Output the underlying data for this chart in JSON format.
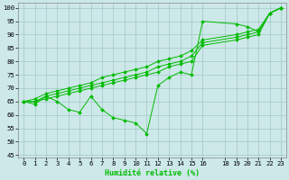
{
  "xlabel": "Humidité relative (%)",
  "background_color": "#cde8e8",
  "grid_color": "#a0c8c8",
  "line_color": "#00bb00",
  "xlim": [
    -0.5,
    23.5
  ],
  "ylim": [
    44,
    102
  ],
  "yticks": [
    45,
    50,
    55,
    60,
    65,
    70,
    75,
    80,
    85,
    90,
    95,
    100
  ],
  "xticks": [
    0,
    1,
    2,
    3,
    4,
    5,
    6,
    7,
    8,
    9,
    10,
    11,
    12,
    13,
    14,
    15,
    16,
    18,
    19,
    20,
    21,
    22,
    23
  ],
  "series": [
    {
      "x": [
        0,
        1,
        2,
        3,
        4,
        5,
        6,
        7,
        8,
        9,
        10,
        11,
        12,
        13,
        14,
        15,
        16,
        19,
        20,
        21,
        22,
        23
      ],
      "y": [
        65,
        64,
        67,
        65,
        62,
        61,
        67,
        62,
        59,
        58,
        57,
        53,
        71,
        74,
        76,
        75,
        95,
        94,
        93,
        91,
        98,
        100
      ]
    },
    {
      "x": [
        0,
        1,
        2,
        3,
        4,
        5,
        6,
        7,
        8,
        9,
        10,
        11,
        12,
        13,
        14,
        15,
        16,
        19,
        20,
        21,
        22,
        23
      ],
      "y": [
        65,
        65,
        66,
        67,
        68,
        69,
        70,
        71,
        72,
        73,
        74,
        75,
        76,
        78,
        79,
        80,
        86,
        88,
        89,
        90,
        98,
        100
      ]
    },
    {
      "x": [
        0,
        1,
        2,
        3,
        4,
        5,
        6,
        7,
        8,
        9,
        10,
        11,
        12,
        13,
        14,
        15,
        16,
        19,
        20,
        21,
        22,
        23
      ],
      "y": [
        65,
        65,
        67,
        68,
        69,
        70,
        71,
        72,
        73,
        74,
        75,
        76,
        78,
        79,
        80,
        82,
        87,
        89,
        90,
        91,
        98,
        100
      ]
    },
    {
      "x": [
        0,
        1,
        2,
        3,
        4,
        5,
        6,
        7,
        8,
        9,
        10,
        11,
        12,
        13,
        14,
        15,
        16,
        19,
        20,
        21,
        22,
        23
      ],
      "y": [
        65,
        66,
        68,
        69,
        70,
        71,
        72,
        74,
        75,
        76,
        77,
        78,
        80,
        81,
        82,
        84,
        88,
        90,
        91,
        92,
        98,
        100
      ]
    }
  ],
  "xlabel_fontsize": 6.0,
  "tick_fontsize": 5.2
}
